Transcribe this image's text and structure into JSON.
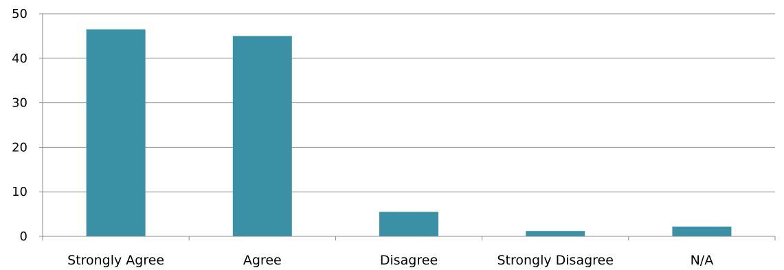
{
  "chart_data": {
    "type": "bar",
    "title": "",
    "xlabel": "",
    "ylabel": "",
    "categories": [
      "Strongly Agree",
      "Agree",
      "Disagree",
      "Strongly Disagree",
      "N/A"
    ],
    "values": [
      46.5,
      45,
      5.5,
      1.2,
      2.2
    ],
    "ylim": [
      0,
      50
    ],
    "yticks": [
      "0",
      "10",
      "20",
      "30",
      "40",
      "50"
    ],
    "grid": true,
    "legend": "none",
    "bar_color": "#3a91a6",
    "grid_color": "#8c8c8c"
  }
}
